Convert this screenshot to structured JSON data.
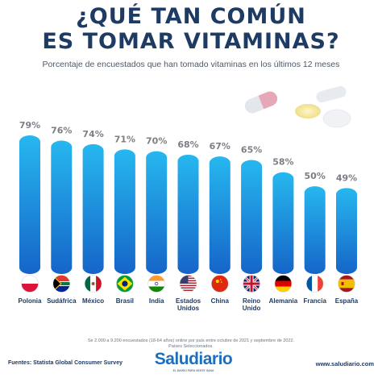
{
  "header": {
    "title_line1": "¿QUÉ TAN COMÚN",
    "title_line2": "ES TOMAR VITAMINAS?",
    "subtitle": "Porcentaje de encuestados que han tomado vitaminas en los últimos 12 meses"
  },
  "chart_data": {
    "type": "bar",
    "title": "¿QUÉ TAN COMÚN ES TOMAR VITAMINAS?",
    "subtitle": "Porcentaje de encuestados que han tomado vitaminas en los últimos 12 meses",
    "categories": [
      "Polonia",
      "Sudáfrica",
      "México",
      "Brasil",
      "India",
      "Estados Unidos",
      "China",
      "Reino Unido",
      "Alemania",
      "Francia",
      "España"
    ],
    "category_lines": [
      [
        "Polonia"
      ],
      [
        "Sudáfrica"
      ],
      [
        "México"
      ],
      [
        "Brasil"
      ],
      [
        "India"
      ],
      [
        "Estados",
        "Unidos"
      ],
      [
        "China"
      ],
      [
        "Reino",
        "Unido"
      ],
      [
        "Alemania"
      ],
      [
        "Francia"
      ],
      [
        "España"
      ]
    ],
    "values": [
      79,
      76,
      74,
      71,
      70,
      68,
      67,
      65,
      58,
      50,
      49
    ],
    "value_labels": [
      "79%",
      "76%",
      "74%",
      "71%",
      "70%",
      "68%",
      "67%",
      "65%",
      "58%",
      "50%",
      "49%"
    ],
    "flags": [
      "poland-flag",
      "south-africa-flag",
      "mexico-flag",
      "brazil-flag",
      "india-flag",
      "usa-flag",
      "china-flag",
      "uk-flag",
      "germany-flag",
      "france-flag",
      "spain-flag"
    ],
    "unit": "%",
    "grid": false,
    "legend": "none",
    "colors": {
      "bar_top": "#27b7ef",
      "bar_bottom": "#1565c8",
      "value_text": "#7b7f85",
      "label_text": "#1d3b63"
    }
  },
  "footer": {
    "note_line1": "Se 2.000 a 9.200 encuestados (18-64 años) online por país entre octubre de 2021 y septiembre de 2022.",
    "note_line2": "Países Seleccionados.",
    "source": "Fuentes: Statista Global Consumer Survey",
    "brand": "Saludiario",
    "brand_tagline": "EL DIARIO PARA GENTE SANA",
    "website": "www.saludiario.com"
  }
}
